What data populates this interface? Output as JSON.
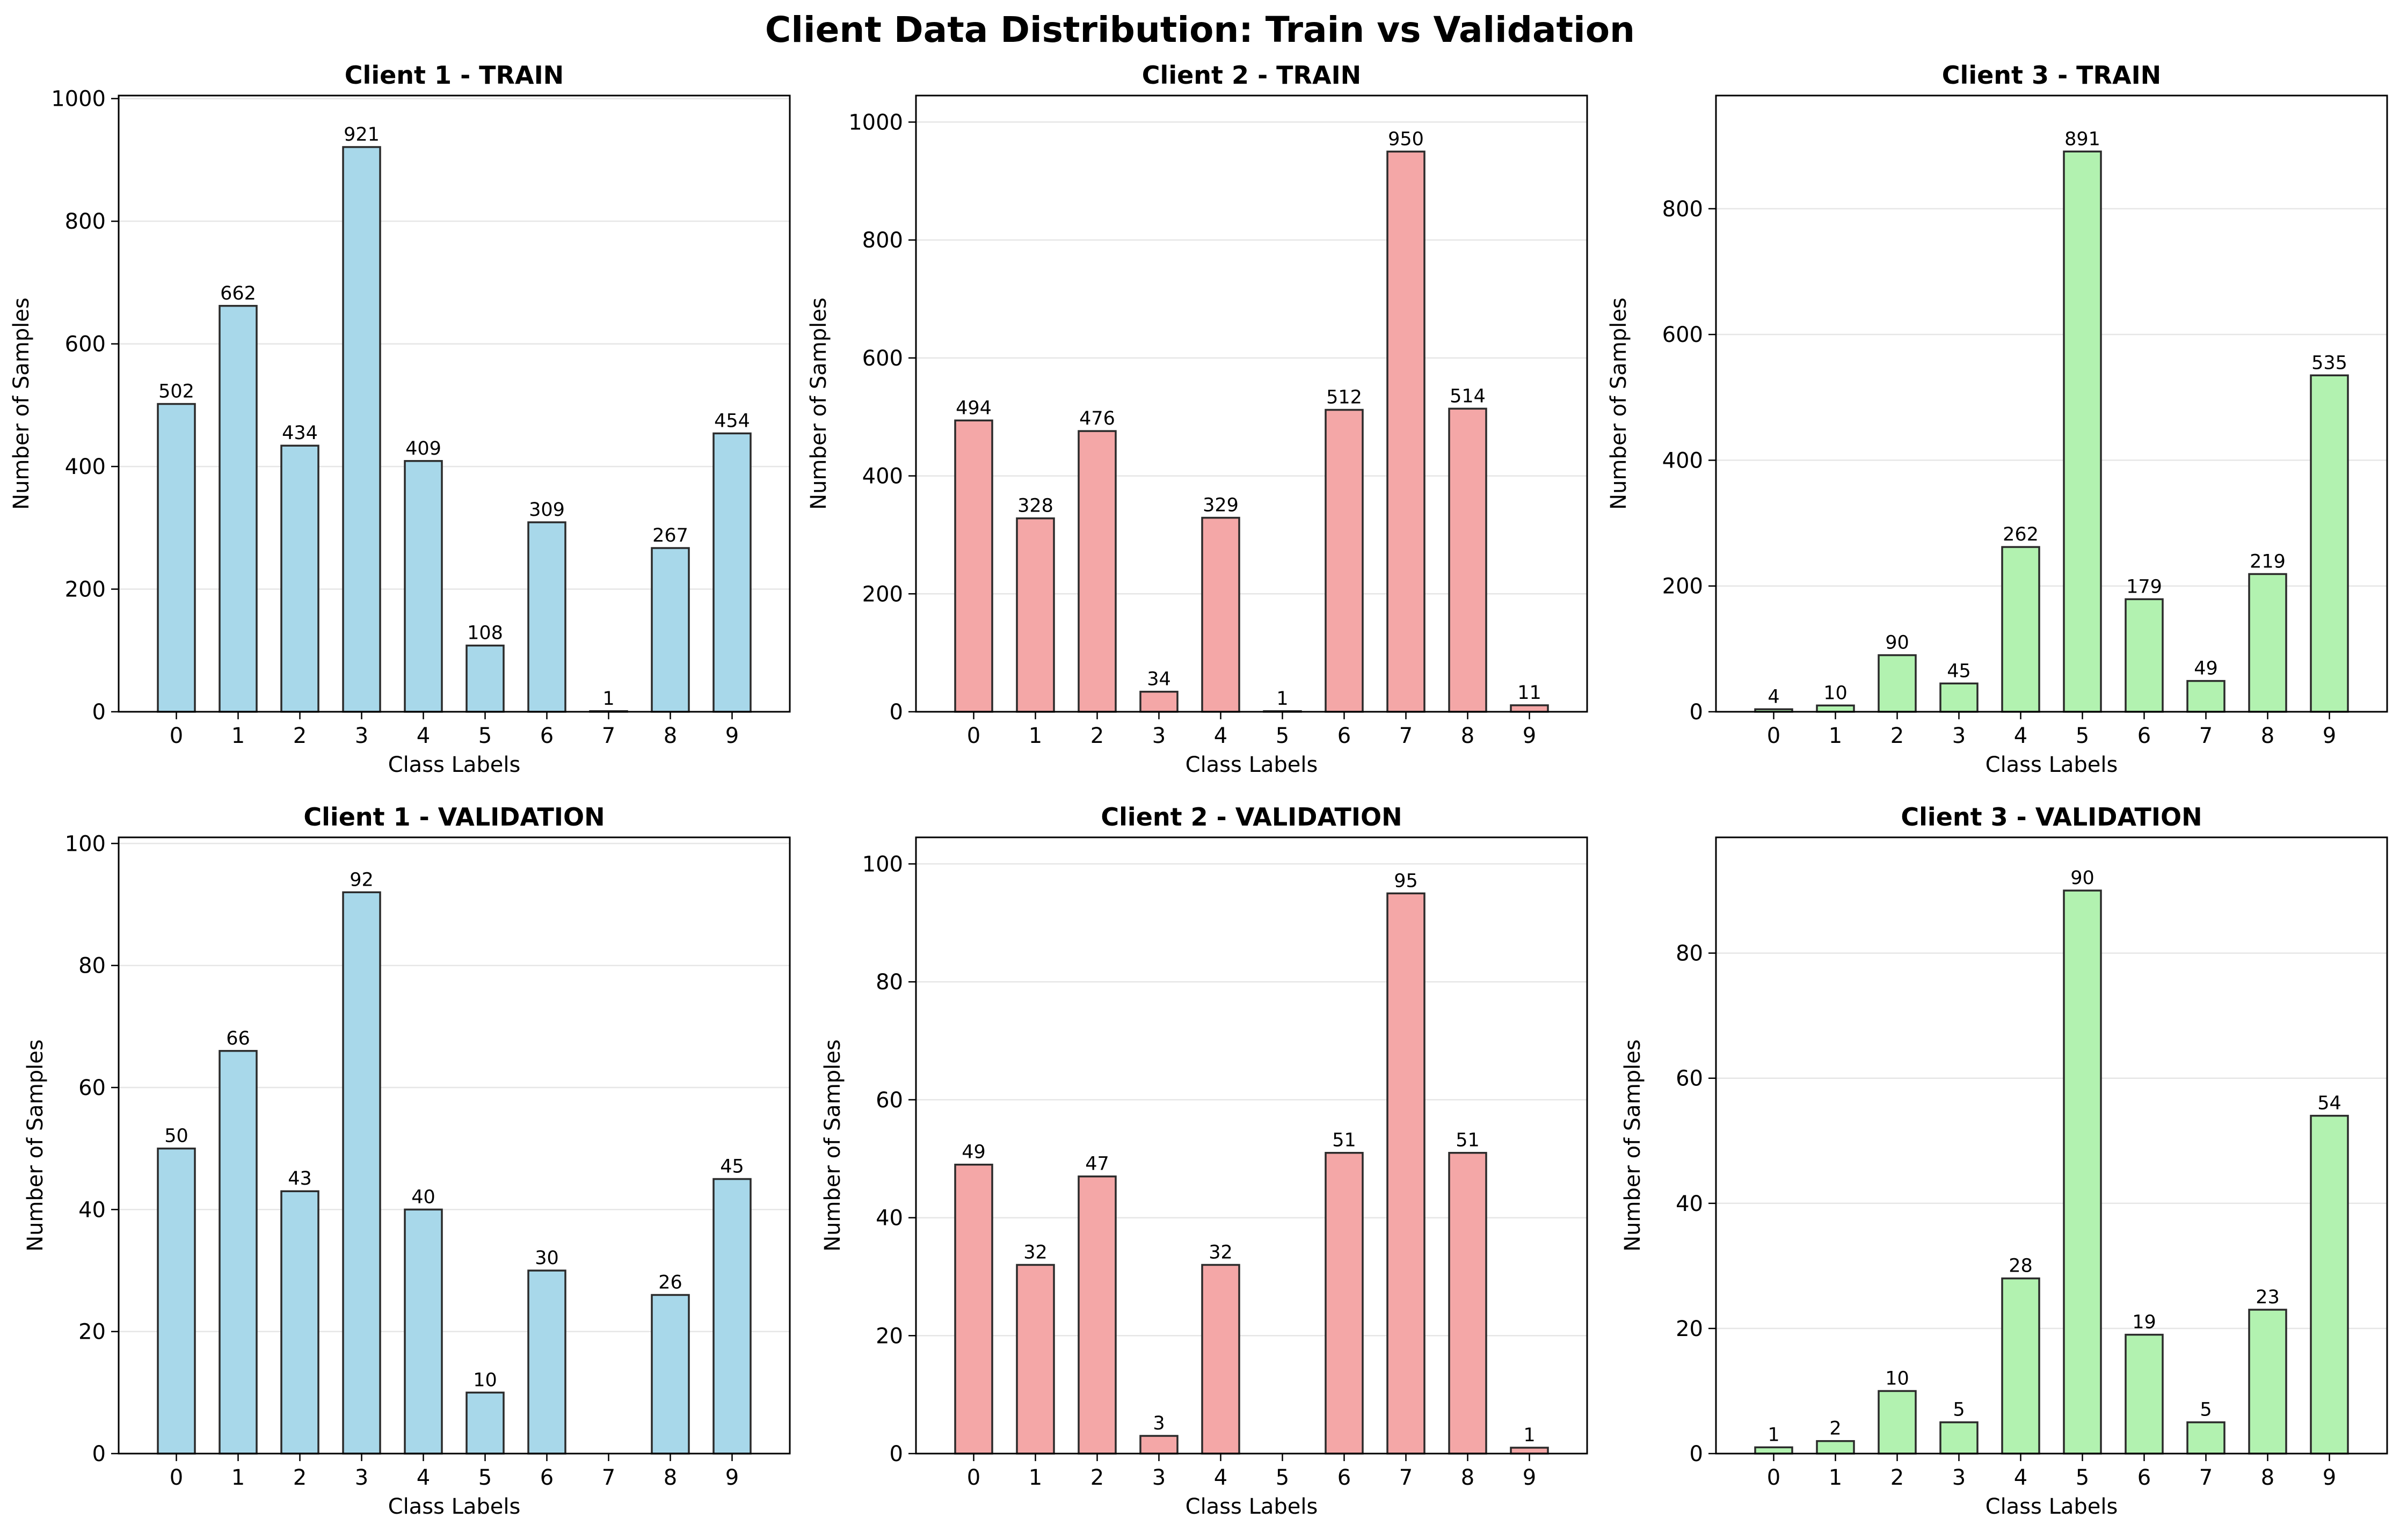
{
  "figure_title": "Client Data Distribution: Train vs Validation",
  "colors": {
    "client1": "#a8d8ea",
    "client2": "#f4a7a7",
    "client3": "#b2f2b0",
    "edge": "#2b2b2b",
    "grid": "#e6e6e6"
  },
  "chart_data": [
    {
      "type": "bar",
      "title": "Client 1 - TRAIN",
      "xlabel": "Class Labels",
      "ylabel": "Number of Samples",
      "categories": [
        "0",
        "1",
        "2",
        "3",
        "4",
        "5",
        "6",
        "7",
        "8",
        "9"
      ],
      "values": [
        502,
        662,
        434,
        921,
        409,
        108,
        309,
        1,
        267,
        454
      ],
      "ylim": [
        0,
        1005
      ],
      "yticks": [
        0,
        200,
        400,
        600,
        800,
        1000
      ],
      "color": "client1",
      "grid": "y"
    },
    {
      "type": "bar",
      "title": "Client 2 - TRAIN",
      "xlabel": "Class Labels",
      "ylabel": "Number of Samples",
      "categories": [
        "0",
        "1",
        "2",
        "3",
        "4",
        "5",
        "6",
        "7",
        "8",
        "9"
      ],
      "values": [
        494,
        328,
        476,
        34,
        329,
        1,
        512,
        950,
        514,
        11
      ],
      "ylim": [
        0,
        1045
      ],
      "yticks": [
        0,
        200,
        400,
        600,
        800,
        1000
      ],
      "color": "client2",
      "grid": "y"
    },
    {
      "type": "bar",
      "title": "Client 3 - TRAIN",
      "xlabel": "Class Labels",
      "ylabel": "Number of Samples",
      "categories": [
        "0",
        "1",
        "2",
        "3",
        "4",
        "5",
        "6",
        "7",
        "8",
        "9"
      ],
      "values": [
        4,
        10,
        90,
        45,
        262,
        891,
        179,
        49,
        219,
        535
      ],
      "ylim": [
        0,
        980
      ],
      "yticks": [
        0,
        200,
        400,
        600,
        800
      ],
      "color": "client3",
      "grid": "y"
    },
    {
      "type": "bar",
      "title": "Client 1 - VALIDATION",
      "xlabel": "Class Labels",
      "ylabel": "Number of Samples",
      "categories": [
        "0",
        "1",
        "2",
        "3",
        "4",
        "5",
        "6",
        "7",
        "8",
        "9"
      ],
      "values": [
        50,
        66,
        43,
        92,
        40,
        10,
        30,
        0,
        26,
        45
      ],
      "ylim": [
        0,
        101
      ],
      "yticks": [
        0,
        20,
        40,
        60,
        80,
        100
      ],
      "color": "client1",
      "grid": "y"
    },
    {
      "type": "bar",
      "title": "Client 2 - VALIDATION",
      "xlabel": "Class Labels",
      "ylabel": "Number of Samples",
      "categories": [
        "0",
        "1",
        "2",
        "3",
        "4",
        "5",
        "6",
        "7",
        "8",
        "9"
      ],
      "values": [
        49,
        32,
        47,
        3,
        32,
        0,
        51,
        95,
        51,
        1
      ],
      "ylim": [
        0,
        104.5
      ],
      "yticks": [
        0,
        20,
        40,
        60,
        80,
        100
      ],
      "color": "client2",
      "grid": "y"
    },
    {
      "type": "bar",
      "title": "Client 3 - VALIDATION",
      "xlabel": "Class Labels",
      "ylabel": "Number of Samples",
      "categories": [
        "0",
        "1",
        "2",
        "3",
        "4",
        "5",
        "6",
        "7",
        "8",
        "9"
      ],
      "values": [
        1,
        2,
        10,
        5,
        28,
        90,
        19,
        5,
        23,
        54
      ],
      "ylim": [
        0,
        98.5
      ],
      "yticks": [
        0,
        20,
        40,
        60,
        80
      ],
      "color": "client3",
      "grid": "y"
    }
  ]
}
